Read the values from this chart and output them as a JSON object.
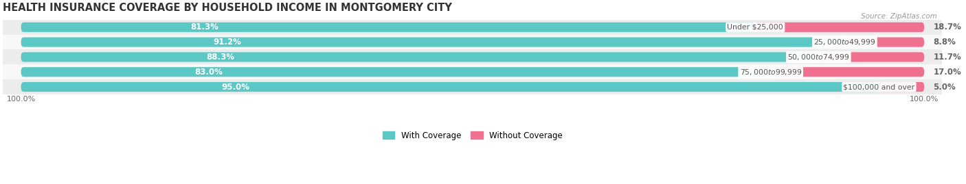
{
  "title": "HEALTH INSURANCE COVERAGE BY HOUSEHOLD INCOME IN MONTGOMERY CITY",
  "source": "Source: ZipAtlas.com",
  "categories": [
    "Under $25,000",
    "$25,000 to $49,999",
    "$50,000 to $74,999",
    "$75,000 to $99,999",
    "$100,000 and over"
  ],
  "with_coverage": [
    81.3,
    91.2,
    88.3,
    83.0,
    95.0
  ],
  "without_coverage": [
    18.7,
    8.8,
    11.7,
    17.0,
    5.0
  ],
  "color_with": "#5BC8C5",
  "color_without": "#F07090",
  "row_bg_colors": [
    "#ECECEC",
    "#F8F8F8"
  ],
  "label_color_with": "#FFFFFF",
  "category_label_color": "#555555",
  "right_label_color": "#666666",
  "title_fontsize": 10.5,
  "label_fontsize": 8.5,
  "category_fontsize": 7.8,
  "legend_fontsize": 8.5,
  "footer_fontsize": 8.0,
  "axis_label": "100.0%",
  "bar_height": 0.65,
  "rounding": 0.3
}
